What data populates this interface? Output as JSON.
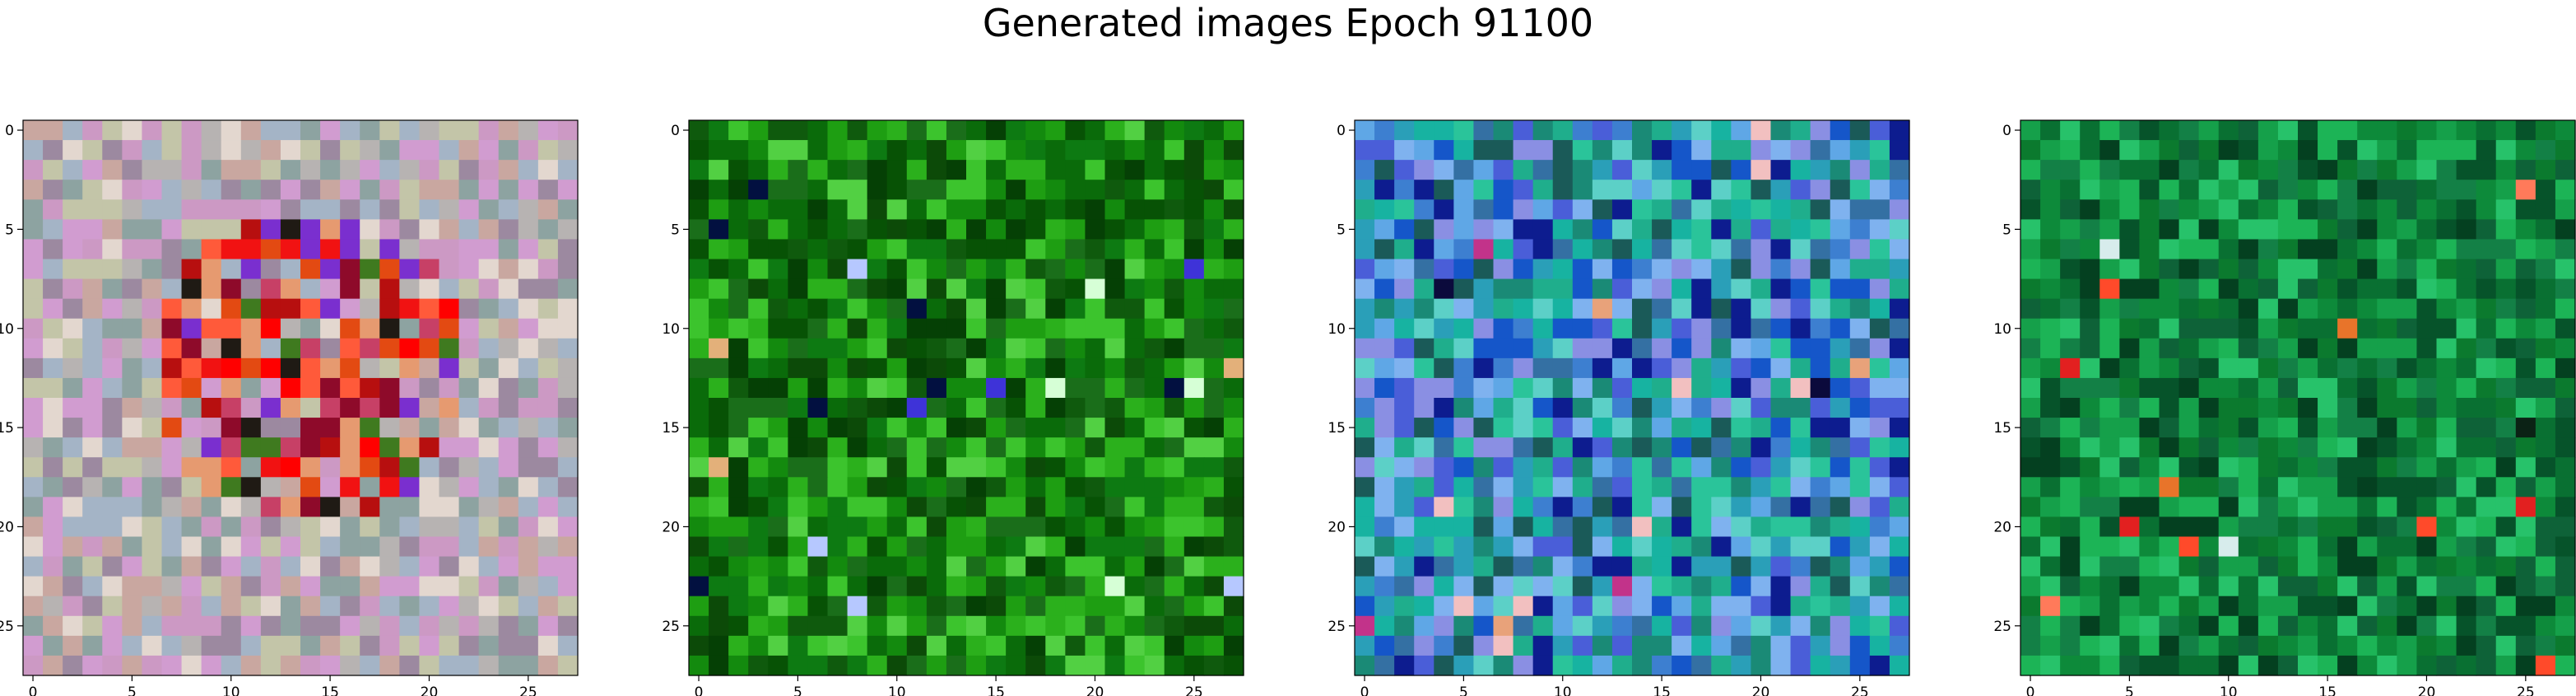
{
  "figure": {
    "title": "Generated images Epoch 91100"
  },
  "chart_data": [
    {
      "type": "heatmap",
      "grid_size": [
        28,
        28
      ],
      "xlim": [
        0,
        27
      ],
      "ylim": [
        27,
        0
      ],
      "xticks": [
        "0",
        "5",
        "10",
        "15",
        "20",
        "25"
      ],
      "yticks": [
        "0",
        "5",
        "10",
        "15",
        "20",
        "25"
      ],
      "tick_values": [
        0,
        5,
        10,
        15,
        20,
        25
      ],
      "palette": [
        "#cc99c4",
        "#b7b3b2",
        "#c9a7a0",
        "#a4b4c6",
        "#8da3a1",
        "#d19cd0",
        "#c3c5a8",
        "#e3d7cf",
        "#9c89a0",
        "#ff0000",
        "#f11212",
        "#b70f0f",
        "#e34a12",
        "#ff5a3a",
        "#8e0a2a",
        "#1f1a14",
        "#7a2fcf",
        "#3f7a1f",
        "#e69a70",
        "#c74066"
      ],
      "seed": 11,
      "hot_center": [
        14,
        12
      ],
      "hot_radius": 8
    },
    {
      "type": "heatmap",
      "grid_size": [
        28,
        28
      ],
      "xlim": [
        0,
        27
      ],
      "ylim": [
        27,
        0
      ],
      "xticks": [
        "0",
        "5",
        "10",
        "15",
        "20",
        "25"
      ],
      "yticks": [
        "0",
        "5",
        "10",
        "15",
        "20",
        "25"
      ],
      "tick_values": [
        0,
        5,
        10,
        15,
        20,
        25
      ],
      "palette": [
        "#0a6b0a",
        "#138a0e",
        "#0f5a0d",
        "#1e9e12",
        "#0c4a08",
        "#2bb01c",
        "#0d7a12",
        "#075205",
        "#3cc42d",
        "#1a6e1a",
        "#054005",
        "#52d043"
      ],
      "seed": 23,
      "accents": [
        "#b6c8ff",
        "#3e33d8",
        "#e3b07a",
        "#021040",
        "#d6ffd6"
      ]
    },
    {
      "type": "heatmap",
      "grid_size": [
        28,
        28
      ],
      "xlim": [
        0,
        27
      ],
      "ylim": [
        27,
        0
      ],
      "xticks": [
        "0",
        "5",
        "10",
        "15",
        "20",
        "25"
      ],
      "yticks": [
        "0",
        "5",
        "10",
        "15",
        "20",
        "25"
      ],
      "tick_values": [
        0,
        5,
        10,
        15,
        20,
        25
      ],
      "palette": [
        "#2a9fb8",
        "#1fae8c",
        "#3d7fd0",
        "#5fa7e6",
        "#17b3a1",
        "#4a5ed8",
        "#1a8a76",
        "#7fb2ef",
        "#2ac49a",
        "#1556c9",
        "#5cd0c7",
        "#3470a3",
        "#0d1c8f",
        "#8a8fe3",
        "#1a5a58"
      ],
      "seed": 37,
      "accents": [
        "#e8a27a",
        "#f2c0c0",
        "#0b0a3c",
        "#c2338a"
      ]
    },
    {
      "type": "heatmap",
      "grid_size": [
        28,
        28
      ],
      "xlim": [
        0,
        27
      ],
      "ylim": [
        27,
        0
      ],
      "xticks": [
        "0",
        "5",
        "10",
        "15",
        "20",
        "25"
      ],
      "yticks": [
        "0",
        "5",
        "10",
        "15",
        "20",
        "25"
      ],
      "tick_values": [
        0,
        5,
        10,
        15,
        20,
        25
      ],
      "palette": [
        "#0d8a3a",
        "#097032",
        "#15a04a",
        "#06532a",
        "#1cb456",
        "#0b7a2e",
        "#044020",
        "#27c26a",
        "#138046",
        "#0e6238"
      ],
      "seed": 53,
      "accents": [
        "#ff4a2a",
        "#ff7a5a",
        "#e22020",
        "#d7ecec",
        "#e8742a",
        "#0b2215"
      ]
    }
  ]
}
